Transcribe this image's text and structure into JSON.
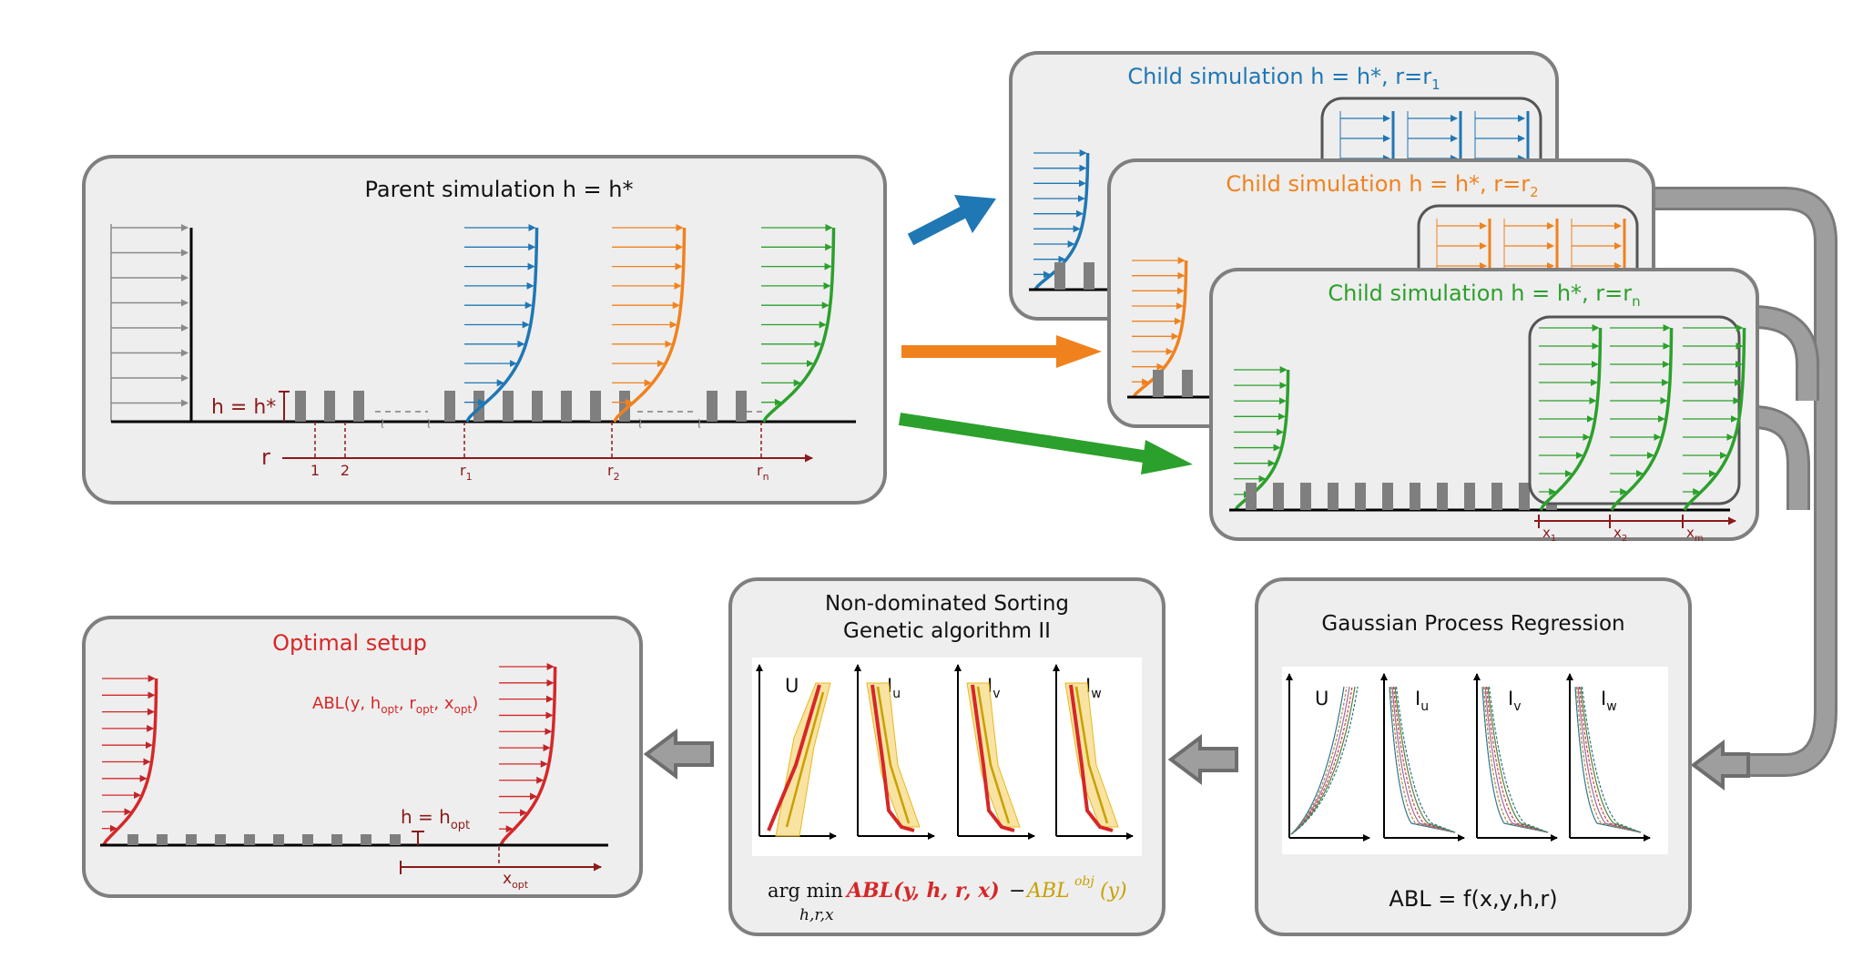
{
  "colors": {
    "blue": "#1f77b4",
    "orange": "#f0821e",
    "green": "#2ca02c",
    "gray_inflow": "#8a8a8a",
    "dark_red": "#8b1a1a",
    "red": "#d62728",
    "gold": "#c8a000",
    "panel_fill": "#eeeeee",
    "panel_stroke": "#7f7f7f",
    "roughness": "#7f7f7f",
    "process_arrow": "#8c8c8c"
  },
  "parent": {
    "title": "Parent simulation h = h*",
    "height_label": "h = h*",
    "r_label": "r",
    "r_ticks": [
      "1",
      "2",
      "r1",
      "r2",
      "rn"
    ]
  },
  "children": [
    {
      "title": "Child simulation h = h*,  r=r1",
      "color": "blue"
    },
    {
      "title": "Child simulation h = h*,  r=r2",
      "color": "orange"
    },
    {
      "title": "Child simulation h = h*,  r=rn",
      "color": "green",
      "x_ticks": [
        "x1",
        "x2",
        "xm"
      ]
    }
  ],
  "gpr": {
    "title": "Gaussian Process Regression",
    "plot_labels": [
      "U",
      "Iu",
      "Iv",
      "Iw"
    ],
    "equation": "ABL = f(x,y,h,r)"
  },
  "nsga": {
    "title_line1": "Non-dominated Sorting",
    "title_line2": "Genetic algorithm II",
    "plot_labels": [
      "U",
      "Iu",
      "Iv",
      "Iw"
    ],
    "formula_argmin": "arg min",
    "formula_sub": "h,r,x",
    "formula_abl": "ABL(y, h, r, x)",
    "formula_minus": "−",
    "formula_obj": "ABL",
    "formula_obj_sup": "obj",
    "formula_obj_arg": "(y)"
  },
  "optimal": {
    "title": "Optimal setup",
    "abl_label": "ABL(y, hopt, ropt, xopt)",
    "h_label": "h = hopt",
    "x_label": "xopt"
  }
}
